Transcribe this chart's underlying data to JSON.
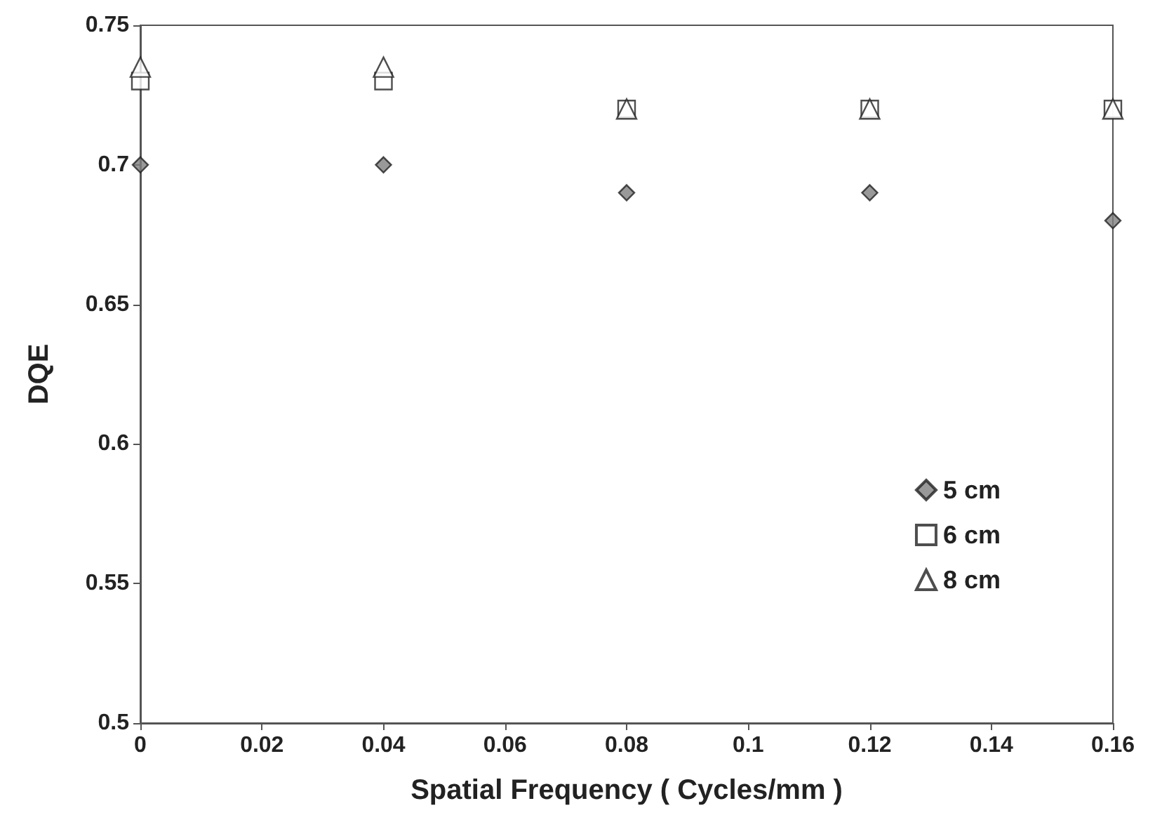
{
  "chart_data": {
    "type": "scatter",
    "xlabel": "Spatial Frequency ( Cycles/mm )",
    "ylabel": "DQE",
    "x": [
      0,
      0.04,
      0.08,
      0.12,
      0.16
    ],
    "series": [
      {
        "name": "5 cm",
        "color": "#808080",
        "marker": "diamond",
        "values": [
          0.7,
          0.7,
          0.69,
          0.69,
          0.68
        ]
      },
      {
        "name": "6 cm",
        "color": "#ffffff",
        "marker": "square",
        "values": [
          0.73,
          0.73,
          0.72,
          0.72,
          0.72
        ]
      },
      {
        "name": "8 cm",
        "color": "#ffffff",
        "marker": "triangle",
        "values": [
          0.735,
          0.735,
          0.72,
          0.72,
          0.72
        ]
      }
    ],
    "xlim": [
      0,
      0.16
    ],
    "xticks": [
      0,
      0.02,
      0.04,
      0.06,
      0.08,
      0.1,
      0.12,
      0.14,
      0.16
    ],
    "ylim": [
      0.5,
      0.75
    ],
    "yticks": [
      0.5,
      0.55,
      0.6,
      0.65,
      0.7,
      0.75
    ],
    "grid": false,
    "legend": "right"
  }
}
